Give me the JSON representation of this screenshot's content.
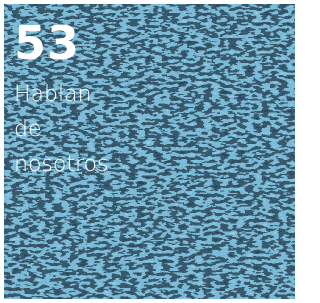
{
  "tile": {
    "number": "53",
    "lines": [
      "Hablan",
      "de",
      "nosotros"
    ]
  }
}
